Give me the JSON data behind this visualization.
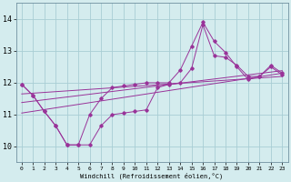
{
  "xlabel": "Windchill (Refroidissement éolien,°C)",
  "bg_color": "#d4ecee",
  "grid_color": "#a8cdd4",
  "line_color": "#993399",
  "xlim": [
    -0.5,
    23.5
  ],
  "ylim": [
    9.5,
    14.5
  ],
  "yticks": [
    10,
    11,
    12,
    13,
    14
  ],
  "xticks": [
    0,
    1,
    2,
    3,
    4,
    5,
    6,
    7,
    8,
    9,
    10,
    11,
    12,
    13,
    14,
    15,
    16,
    17,
    18,
    19,
    20,
    21,
    22,
    23
  ],
  "series1_x": [
    0,
    1,
    2,
    3,
    4,
    5,
    6,
    7,
    8,
    9,
    10,
    11,
    12,
    13,
    14,
    15,
    16,
    17,
    18,
    19,
    20,
    21,
    22,
    23
  ],
  "series1_y": [
    11.95,
    11.6,
    11.1,
    10.65,
    10.05,
    10.05,
    10.05,
    10.65,
    11.0,
    11.05,
    11.1,
    11.15,
    11.85,
    11.95,
    12.0,
    12.45,
    13.82,
    12.85,
    12.8,
    12.55,
    12.2,
    12.2,
    12.55,
    12.3
  ],
  "series2_x": [
    0,
    1,
    2,
    3,
    4,
    5,
    6,
    7,
    8,
    9,
    10,
    11,
    12,
    13,
    14,
    15,
    16,
    17,
    18,
    19,
    20,
    21,
    22,
    23
  ],
  "series2_y": [
    11.95,
    11.6,
    11.1,
    10.65,
    10.05,
    10.05,
    11.0,
    11.5,
    11.85,
    11.9,
    11.95,
    12.0,
    12.0,
    12.0,
    12.4,
    13.15,
    13.9,
    13.3,
    12.95,
    12.5,
    12.1,
    12.2,
    12.5,
    12.25
  ],
  "line1_x": [
    0,
    23
  ],
  "line1_y": [
    11.65,
    12.2
  ],
  "line2_x": [
    0,
    23
  ],
  "line2_y": [
    11.38,
    12.38
  ],
  "line3_x": [
    0,
    23
  ],
  "line3_y": [
    11.05,
    12.3
  ]
}
